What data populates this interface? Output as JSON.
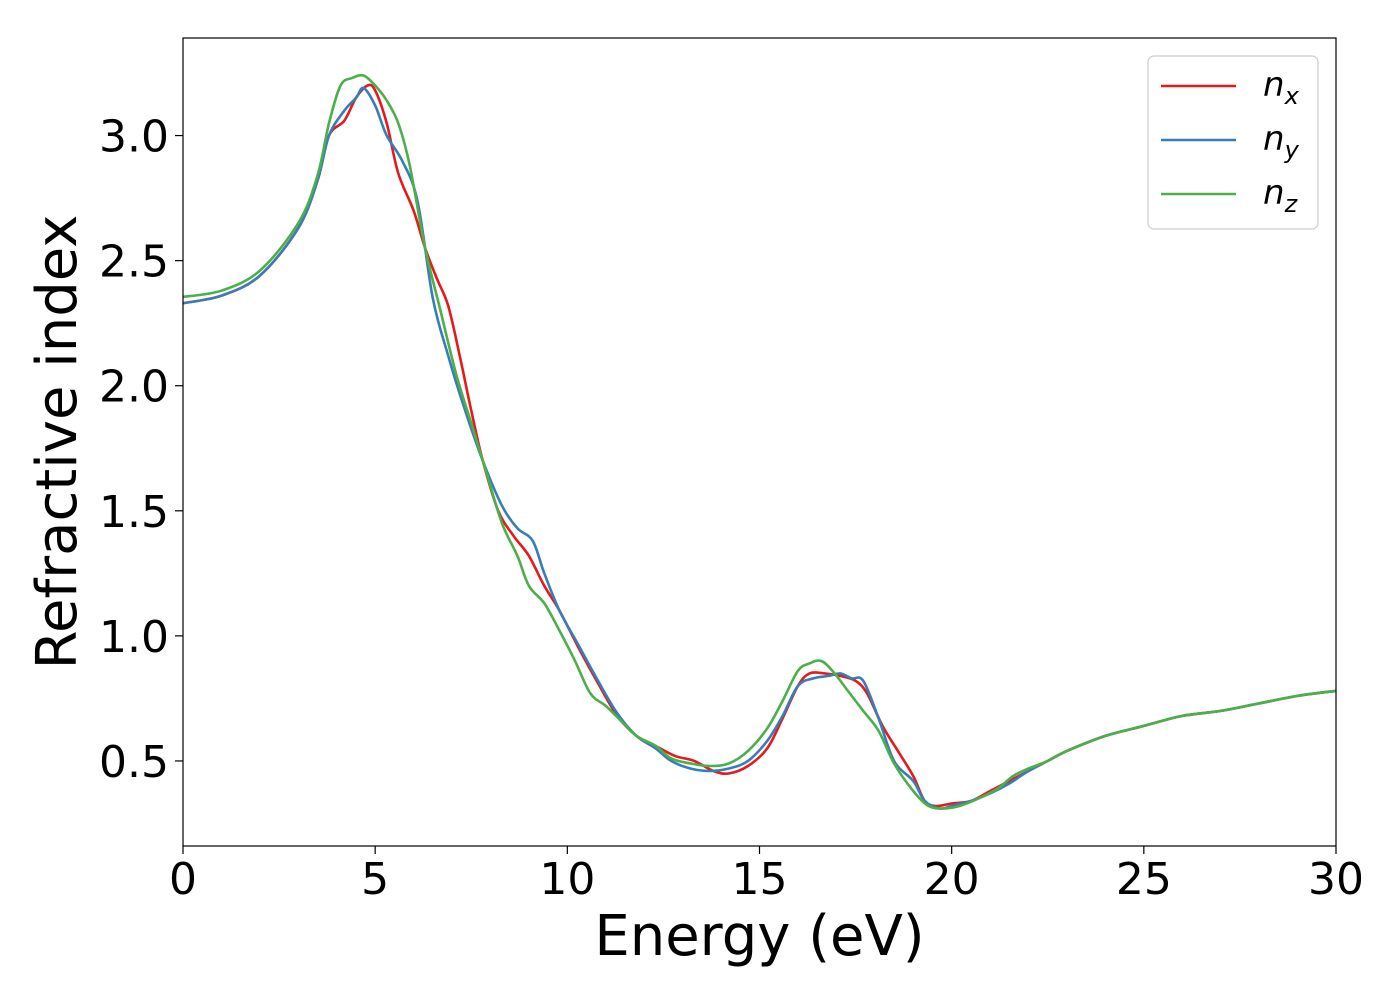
{
  "chart_data": {
    "type": "line",
    "title": "",
    "xlabel": "Energy (eV)",
    "ylabel": "Refractive index",
    "xlim": [
      0,
      30
    ],
    "ylim": [
      0.16,
      3.39
    ],
    "xticks": [
      0,
      5,
      10,
      15,
      20,
      25,
      30
    ],
    "yticks": [
      0.5,
      1.0,
      1.5,
      2.0,
      2.5,
      3.0
    ],
    "xtick_labels": [
      "0",
      "5",
      "10",
      "15",
      "20",
      "25",
      "30"
    ],
    "ytick_labels": [
      "0.5",
      "1.0",
      "1.5",
      "2.0",
      "2.5",
      "3.0"
    ],
    "grid": false,
    "legend_position": "top-right",
    "series": [
      {
        "name": "n_x",
        "label_base": "n",
        "label_sub": "x",
        "color": "#e41a1c",
        "points": [
          [
            0,
            2.33
          ],
          [
            1,
            2.36
          ],
          [
            2,
            2.44
          ],
          [
            3,
            2.63
          ],
          [
            3.5,
            2.82
          ],
          [
            3.8,
            3.0
          ],
          [
            4.2,
            3.06
          ],
          [
            4.5,
            3.15
          ],
          [
            4.8,
            3.2
          ],
          [
            5.0,
            3.18
          ],
          [
            5.3,
            3.05
          ],
          [
            5.6,
            2.85
          ],
          [
            6.0,
            2.7
          ],
          [
            6.3,
            2.55
          ],
          [
            6.6,
            2.43
          ],
          [
            6.9,
            2.32
          ],
          [
            7.2,
            2.12
          ],
          [
            7.5,
            1.9
          ],
          [
            7.8,
            1.7
          ],
          [
            8.2,
            1.5
          ],
          [
            8.6,
            1.4
          ],
          [
            9.0,
            1.32
          ],
          [
            9.4,
            1.2
          ],
          [
            9.8,
            1.1
          ],
          [
            10.3,
            0.95
          ],
          [
            10.8,
            0.81
          ],
          [
            11.3,
            0.68
          ],
          [
            11.8,
            0.6
          ],
          [
            12.3,
            0.56
          ],
          [
            12.8,
            0.52
          ],
          [
            13.3,
            0.5
          ],
          [
            13.8,
            0.46
          ],
          [
            14.2,
            0.45
          ],
          [
            14.7,
            0.48
          ],
          [
            15.2,
            0.55
          ],
          [
            15.6,
            0.67
          ],
          [
            16.0,
            0.8
          ],
          [
            16.3,
            0.85
          ],
          [
            16.7,
            0.85
          ],
          [
            17.1,
            0.84
          ],
          [
            17.5,
            0.82
          ],
          [
            17.8,
            0.77
          ],
          [
            18.2,
            0.64
          ],
          [
            18.6,
            0.54
          ],
          [
            19.0,
            0.44
          ],
          [
            19.3,
            0.34
          ],
          [
            19.6,
            0.32
          ],
          [
            20.0,
            0.33
          ],
          [
            20.5,
            0.34
          ],
          [
            21.0,
            0.38
          ],
          [
            21.5,
            0.42
          ],
          [
            22.0,
            0.46
          ],
          [
            22.5,
            0.5
          ],
          [
            23.0,
            0.54
          ],
          [
            24.0,
            0.6
          ],
          [
            25.0,
            0.64
          ],
          [
            26.0,
            0.68
          ],
          [
            27.0,
            0.7
          ],
          [
            28.0,
            0.73
          ],
          [
            29.0,
            0.76
          ],
          [
            30.0,
            0.78
          ]
        ]
      },
      {
        "name": "n_y",
        "label_base": "n",
        "label_sub": "y",
        "color": "#377eb8",
        "points": [
          [
            0,
            2.33
          ],
          [
            1,
            2.36
          ],
          [
            2,
            2.44
          ],
          [
            3,
            2.63
          ],
          [
            3.5,
            2.82
          ],
          [
            3.8,
            3.0
          ],
          [
            4.2,
            3.1
          ],
          [
            4.5,
            3.15
          ],
          [
            4.7,
            3.19
          ],
          [
            5.0,
            3.12
          ],
          [
            5.3,
            3.0
          ],
          [
            5.7,
            2.9
          ],
          [
            6.1,
            2.74
          ],
          [
            6.5,
            2.35
          ],
          [
            6.9,
            2.12
          ],
          [
            7.3,
            1.92
          ],
          [
            7.8,
            1.7
          ],
          [
            8.3,
            1.52
          ],
          [
            8.7,
            1.43
          ],
          [
            9.1,
            1.38
          ],
          [
            9.4,
            1.25
          ],
          [
            9.8,
            1.1
          ],
          [
            10.3,
            0.96
          ],
          [
            10.8,
            0.82
          ],
          [
            11.3,
            0.69
          ],
          [
            11.8,
            0.6
          ],
          [
            12.3,
            0.55
          ],
          [
            12.7,
            0.5
          ],
          [
            13.2,
            0.47
          ],
          [
            13.7,
            0.46
          ],
          [
            14.2,
            0.47
          ],
          [
            14.7,
            0.5
          ],
          [
            15.2,
            0.58
          ],
          [
            15.6,
            0.68
          ],
          [
            16.0,
            0.8
          ],
          [
            16.4,
            0.83
          ],
          [
            16.8,
            0.84
          ],
          [
            17.1,
            0.85
          ],
          [
            17.4,
            0.83
          ],
          [
            17.7,
            0.82
          ],
          [
            18.1,
            0.67
          ],
          [
            18.5,
            0.5
          ],
          [
            19.0,
            0.42
          ],
          [
            19.3,
            0.34
          ],
          [
            19.7,
            0.31
          ],
          [
            20.0,
            0.32
          ],
          [
            20.5,
            0.34
          ],
          [
            21.0,
            0.37
          ],
          [
            21.5,
            0.41
          ],
          [
            22.0,
            0.46
          ],
          [
            22.5,
            0.5
          ],
          [
            23.0,
            0.54
          ],
          [
            24.0,
            0.6
          ],
          [
            25.0,
            0.64
          ],
          [
            26.0,
            0.68
          ],
          [
            27.0,
            0.7
          ],
          [
            28.0,
            0.73
          ],
          [
            29.0,
            0.76
          ],
          [
            30.0,
            0.78
          ]
        ]
      },
      {
        "name": "n_z",
        "label_base": "n",
        "label_sub": "z",
        "color": "#4daf4a",
        "points": [
          [
            0,
            2.355
          ],
          [
            1,
            2.38
          ],
          [
            2,
            2.46
          ],
          [
            3,
            2.65
          ],
          [
            3.5,
            2.84
          ],
          [
            3.8,
            3.05
          ],
          [
            4.1,
            3.2
          ],
          [
            4.4,
            3.23
          ],
          [
            4.7,
            3.24
          ],
          [
            5.0,
            3.2
          ],
          [
            5.3,
            3.14
          ],
          [
            5.6,
            3.05
          ],
          [
            5.9,
            2.88
          ],
          [
            6.3,
            2.55
          ],
          [
            6.7,
            2.3
          ],
          [
            7.1,
            2.05
          ],
          [
            7.5,
            1.85
          ],
          [
            7.9,
            1.65
          ],
          [
            8.3,
            1.45
          ],
          [
            8.7,
            1.32
          ],
          [
            9.0,
            1.2
          ],
          [
            9.4,
            1.13
          ],
          [
            9.8,
            1.02
          ],
          [
            10.2,
            0.9
          ],
          [
            10.6,
            0.77
          ],
          [
            11.0,
            0.72
          ],
          [
            11.4,
            0.66
          ],
          [
            11.8,
            0.6
          ],
          [
            12.3,
            0.56
          ],
          [
            12.7,
            0.51
          ],
          [
            13.2,
            0.49
          ],
          [
            13.7,
            0.48
          ],
          [
            14.2,
            0.49
          ],
          [
            14.7,
            0.54
          ],
          [
            15.2,
            0.63
          ],
          [
            15.6,
            0.74
          ],
          [
            16.0,
            0.86
          ],
          [
            16.3,
            0.89
          ],
          [
            16.6,
            0.9
          ],
          [
            16.9,
            0.86
          ],
          [
            17.3,
            0.78
          ],
          [
            17.7,
            0.7
          ],
          [
            18.1,
            0.62
          ],
          [
            18.5,
            0.49
          ],
          [
            19.0,
            0.38
          ],
          [
            19.4,
            0.32
          ],
          [
            19.8,
            0.31
          ],
          [
            20.2,
            0.32
          ],
          [
            20.7,
            0.35
          ],
          [
            21.2,
            0.39
          ],
          [
            21.6,
            0.44
          ],
          [
            22.0,
            0.47
          ],
          [
            22.5,
            0.5
          ],
          [
            23.0,
            0.54
          ],
          [
            24.0,
            0.6
          ],
          [
            25.0,
            0.64
          ],
          [
            26.0,
            0.68
          ],
          [
            27.0,
            0.7
          ],
          [
            28.0,
            0.73
          ],
          [
            29.0,
            0.76
          ],
          [
            30.0,
            0.78
          ]
        ]
      }
    ]
  }
}
